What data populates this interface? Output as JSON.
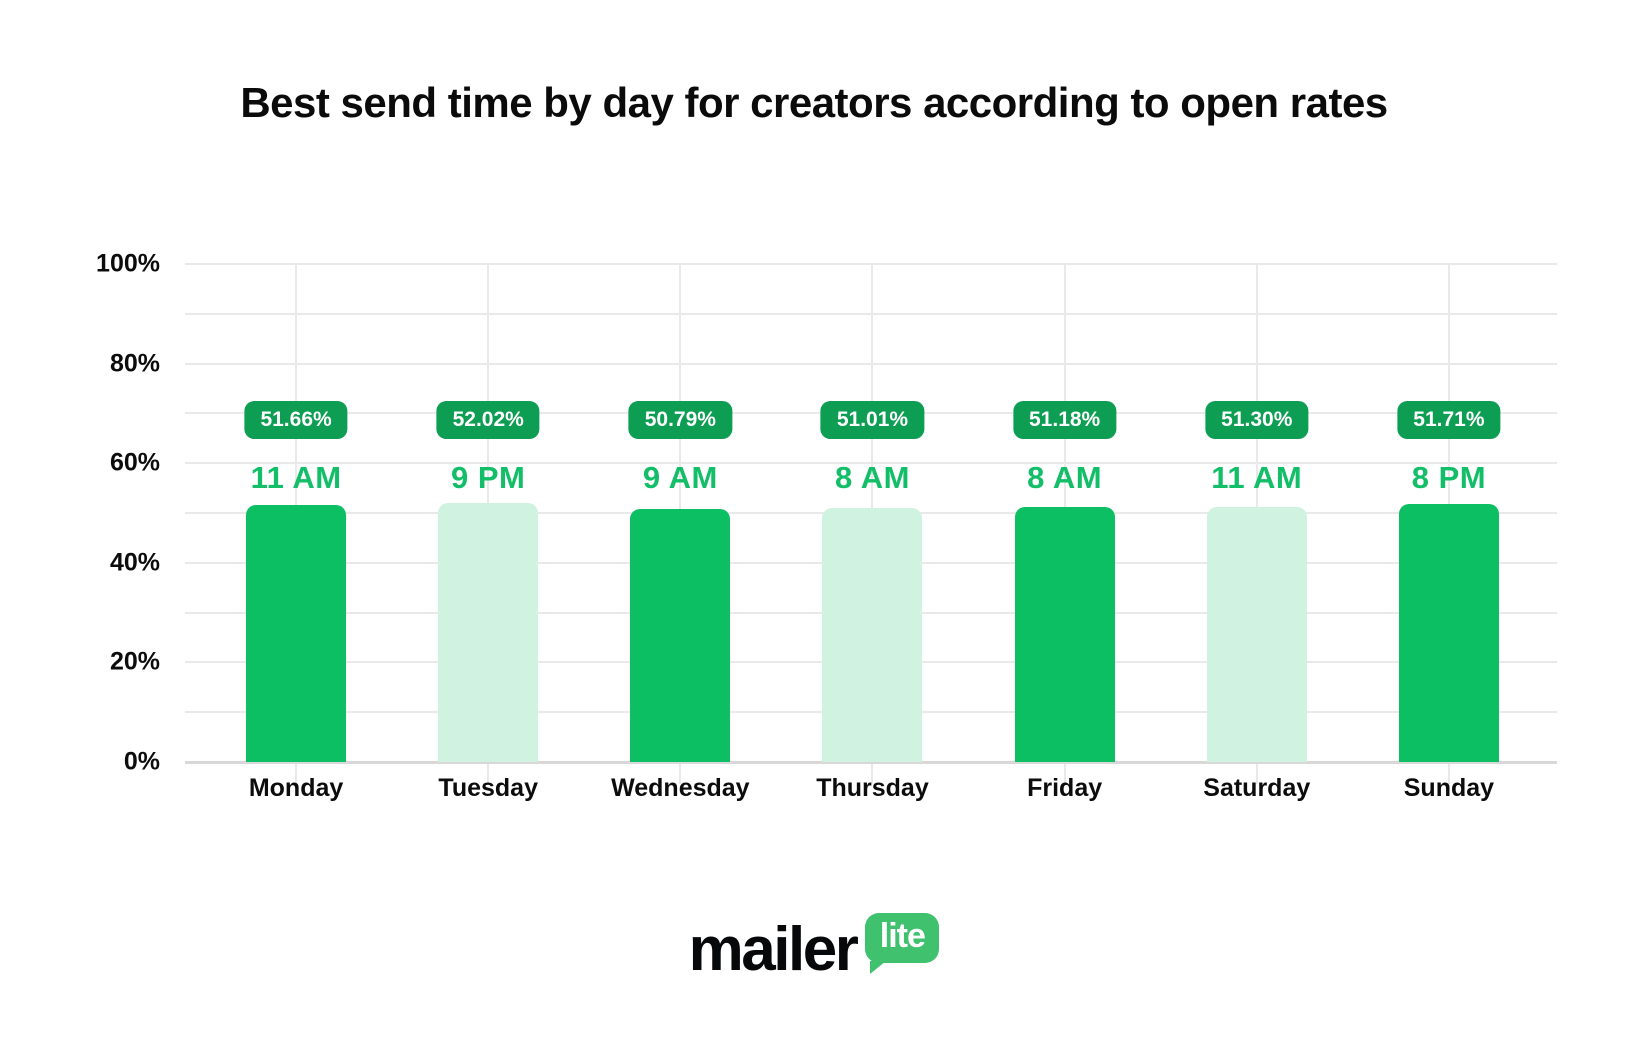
{
  "title": "Best send time by day for creators according to open rates",
  "colors": {
    "bar_solid": "#0cbf63",
    "bar_light": "#cff2e1",
    "badge_bg": "#0d9e53",
    "badge_text": "#ffffff",
    "time_text": "#12be67",
    "grid": "#e9e9e9",
    "axis": "#d8d8d8",
    "logo_green": "#3fc16d"
  },
  "y_axis": {
    "tick_labels_top_down": [
      "100%",
      "80%",
      "60%",
      "40%",
      "20%",
      "0%"
    ]
  },
  "days": [
    {
      "label": "Monday",
      "time": "11 AM",
      "rate": 51.66,
      "rate_label": "51.66%"
    },
    {
      "label": "Tuesday",
      "time": "9 PM",
      "rate": 52.02,
      "rate_label": "52.02%"
    },
    {
      "label": "Wednesday",
      "time": "9 AM",
      "rate": 50.79,
      "rate_label": "50.79%"
    },
    {
      "label": "Thursday",
      "time": "8 AM",
      "rate": 51.01,
      "rate_label": "51.01%"
    },
    {
      "label": "Friday",
      "time": "8 AM",
      "rate": 51.18,
      "rate_label": "51.18%"
    },
    {
      "label": "Saturday",
      "time": "11 AM",
      "rate": 51.3,
      "rate_label": "51.30%"
    },
    {
      "label": "Sunday",
      "time": "8 PM",
      "rate": 51.71,
      "rate_label": "51.71%"
    }
  ],
  "chart_data": {
    "type": "bar",
    "title": "Best send time by day for creators according to open rates",
    "categories": [
      "Monday",
      "Tuesday",
      "Wednesday",
      "Thursday",
      "Friday",
      "Saturday",
      "Sunday"
    ],
    "series": [
      {
        "name": "Open rate",
        "values": [
          51.66,
          52.02,
          50.79,
          51.01,
          51.18,
          51.3,
          51.71
        ]
      }
    ],
    "data_labels": [
      "51.66%",
      "52.02%",
      "50.79%",
      "51.01%",
      "51.18%",
      "51.30%",
      "51.71%"
    ],
    "best_send_times": [
      "11 AM",
      "9 PM",
      "9 AM",
      "8 AM",
      "8 AM",
      "11 AM",
      "8 PM"
    ],
    "xlabel": "",
    "ylabel": "",
    "ylim": [
      0,
      100
    ],
    "y_tick_step_labeled": 20,
    "y_gridline_step": 10,
    "grid": "on",
    "legend": "none"
  },
  "logo": {
    "word": "mailer",
    "bubble": "lite"
  }
}
